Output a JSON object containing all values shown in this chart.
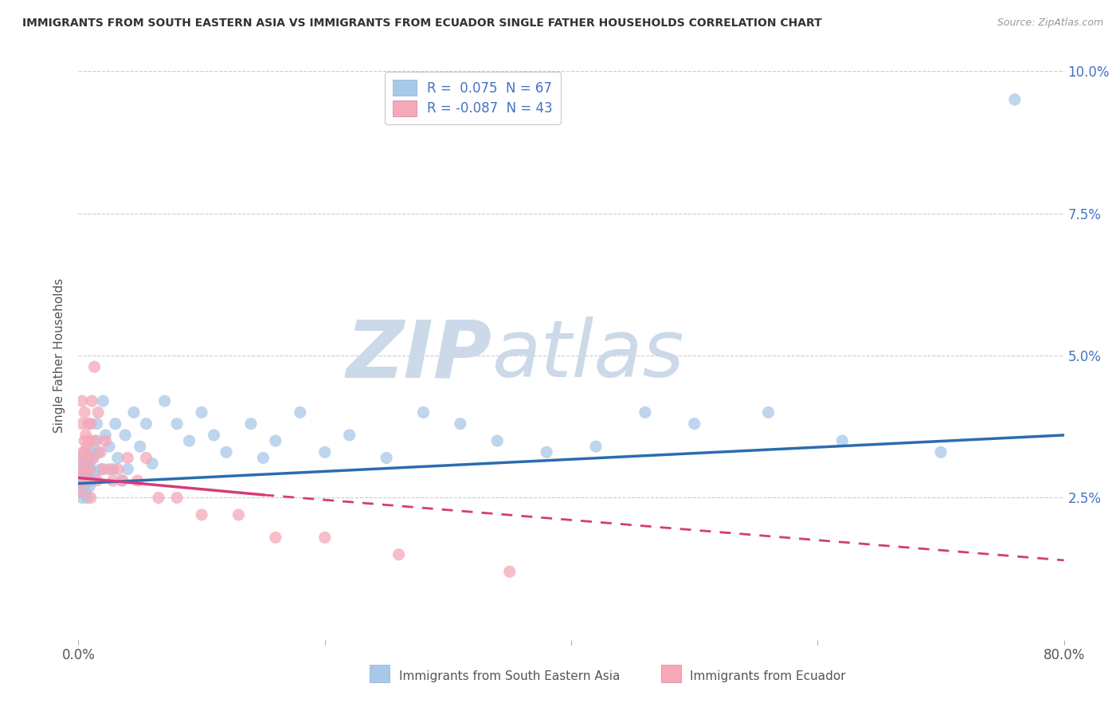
{
  "title": "IMMIGRANTS FROM SOUTH EASTERN ASIA VS IMMIGRANTS FROM ECUADOR SINGLE FATHER HOUSEHOLDS CORRELATION CHART",
  "source": "Source: ZipAtlas.com",
  "ylabel": "Single Father Households",
  "legend_label1": "Immigrants from South Eastern Asia",
  "legend_label2": "Immigrants from Ecuador",
  "R1": 0.075,
  "N1": 67,
  "R2": -0.087,
  "N2": 43,
  "color1": "#a8c8e8",
  "color2": "#f4a8b8",
  "trendline1_color": "#2b6cb0",
  "trendline2_color": "#d63b7a",
  "watermark_color": "#ccd9e8",
  "xlim": [
    0.0,
    0.8
  ],
  "ylim": [
    0.0,
    0.1
  ],
  "yticks": [
    0.0,
    0.025,
    0.05,
    0.075,
    0.1
  ],
  "ytick_labels": [
    "",
    "2.5%",
    "5.0%",
    "7.5%",
    "10.0%"
  ],
  "xticks": [
    0.0,
    0.2,
    0.4,
    0.6,
    0.8
  ],
  "xtick_labels": [
    "0.0%",
    "",
    "",
    "",
    "80.0%"
  ],
  "blue_x": [
    0.001,
    0.002,
    0.002,
    0.003,
    0.003,
    0.003,
    0.004,
    0.004,
    0.004,
    0.005,
    0.005,
    0.005,
    0.006,
    0.006,
    0.007,
    0.007,
    0.007,
    0.008,
    0.008,
    0.009,
    0.009,
    0.01,
    0.01,
    0.011,
    0.012,
    0.013,
    0.014,
    0.015,
    0.016,
    0.018,
    0.02,
    0.022,
    0.025,
    0.028,
    0.03,
    0.032,
    0.035,
    0.038,
    0.04,
    0.045,
    0.05,
    0.055,
    0.06,
    0.07,
    0.08,
    0.09,
    0.1,
    0.11,
    0.12,
    0.14,
    0.15,
    0.16,
    0.18,
    0.2,
    0.22,
    0.25,
    0.28,
    0.31,
    0.34,
    0.38,
    0.42,
    0.46,
    0.5,
    0.56,
    0.62,
    0.7,
    0.76
  ],
  "blue_y": [
    0.028,
    0.03,
    0.026,
    0.032,
    0.028,
    0.025,
    0.029,
    0.031,
    0.027,
    0.03,
    0.028,
    0.033,
    0.026,
    0.031,
    0.028,
    0.03,
    0.025,
    0.029,
    0.032,
    0.027,
    0.031,
    0.03,
    0.028,
    0.033,
    0.032,
    0.029,
    0.035,
    0.038,
    0.033,
    0.03,
    0.042,
    0.036,
    0.034,
    0.03,
    0.038,
    0.032,
    0.028,
    0.036,
    0.03,
    0.04,
    0.034,
    0.038,
    0.031,
    0.042,
    0.038,
    0.035,
    0.04,
    0.036,
    0.033,
    0.038,
    0.032,
    0.035,
    0.04,
    0.033,
    0.036,
    0.032,
    0.04,
    0.038,
    0.035,
    0.033,
    0.034,
    0.04,
    0.038,
    0.04,
    0.035,
    0.033,
    0.095
  ],
  "pink_x": [
    0.001,
    0.002,
    0.002,
    0.003,
    0.003,
    0.004,
    0.004,
    0.005,
    0.005,
    0.006,
    0.006,
    0.007,
    0.007,
    0.008,
    0.008,
    0.009,
    0.009,
    0.01,
    0.01,
    0.011,
    0.012,
    0.013,
    0.014,
    0.015,
    0.016,
    0.018,
    0.02,
    0.022,
    0.025,
    0.028,
    0.032,
    0.036,
    0.04,
    0.048,
    0.055,
    0.065,
    0.08,
    0.1,
    0.13,
    0.16,
    0.2,
    0.26,
    0.35
  ],
  "pink_y": [
    0.03,
    0.032,
    0.026,
    0.042,
    0.038,
    0.033,
    0.028,
    0.035,
    0.04,
    0.03,
    0.036,
    0.028,
    0.034,
    0.032,
    0.038,
    0.035,
    0.03,
    0.038,
    0.025,
    0.042,
    0.032,
    0.048,
    0.035,
    0.028,
    0.04,
    0.033,
    0.03,
    0.035,
    0.03,
    0.028,
    0.03,
    0.028,
    0.032,
    0.028,
    0.032,
    0.025,
    0.025,
    0.022,
    0.022,
    0.018,
    0.018,
    0.015,
    0.012
  ],
  "trendline1_x0": 0.0,
  "trendline1_y0": 0.0275,
  "trendline1_x1": 0.8,
  "trendline1_y1": 0.036,
  "trendline2_x0": 0.0,
  "trendline2_y0": 0.0285,
  "trendline2_x1_solid": 0.15,
  "trendline2_y1_solid": 0.0255,
  "trendline2_x1": 0.8,
  "trendline2_y1": 0.014
}
